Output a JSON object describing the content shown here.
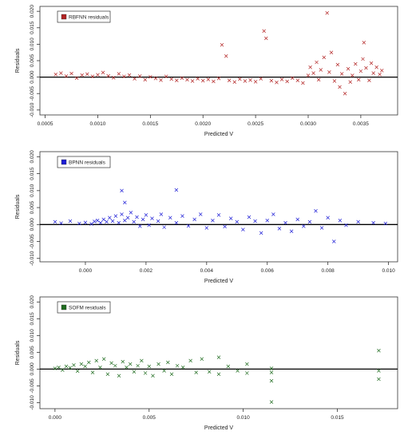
{
  "chart_data": [
    {
      "type": "scatter",
      "title": "",
      "xlabel": "Predicted V",
      "ylabel": "Residuals",
      "xlim": [
        0.00045,
        0.00385
      ],
      "ylim": [
        -0.0115,
        0.0215
      ],
      "xticks": [
        "0.0005",
        "0.0010",
        "0.0015",
        "0.0020",
        "0.0025",
        "0.0030",
        "0.0035"
      ],
      "xtick_values": [
        0.0005,
        0.001,
        0.0015,
        0.002,
        0.0025,
        0.003,
        0.0035
      ],
      "yticks": [
        "-0.010",
        "-0.005",
        "0.000",
        "0.005",
        "0.010",
        "0.015",
        "0.020"
      ],
      "ytick_values": [
        -0.01,
        -0.005,
        0.0,
        0.005,
        0.01,
        0.015,
        0.02
      ],
      "legend": {
        "label": "RBFNN residuals",
        "position": "top-left"
      },
      "color": "#b22222",
      "reference_line_y": 0,
      "series": [
        {
          "name": "RBFNN residuals",
          "points": [
            [
              0.0006,
              0.0008
            ],
            [
              0.00065,
              0.0012
            ],
            [
              0.0007,
              0.0003
            ],
            [
              0.00075,
              0.0011
            ],
            [
              0.0008,
              -0.0003
            ],
            [
              0.00085,
              0.0006
            ],
            [
              0.0009,
              0.0009
            ],
            [
              0.00095,
              0.0002
            ],
            [
              0.001,
              0.0007
            ],
            [
              0.00105,
              0.0014
            ],
            [
              0.0011,
              0.0004
            ],
            [
              0.00115,
              -0.0002
            ],
            [
              0.0012,
              0.001
            ],
            [
              0.00125,
              0.0002
            ],
            [
              0.0013,
              0.0006
            ],
            [
              0.00135,
              -0.0005
            ],
            [
              0.0014,
              0.0003
            ],
            [
              0.00145,
              -0.0008
            ],
            [
              0.0015,
              0.0001
            ],
            [
              0.00155,
              -0.0004
            ],
            [
              0.0016,
              -0.0009
            ],
            [
              0.00165,
              0.0002
            ],
            [
              0.0017,
              -0.0006
            ],
            [
              0.00175,
              -0.001
            ],
            [
              0.0018,
              -0.0003
            ],
            [
              0.00185,
              -0.0008
            ],
            [
              0.0019,
              -0.0012
            ],
            [
              0.00195,
              -0.0005
            ],
            [
              0.002,
              -0.0011
            ],
            [
              0.00205,
              -0.0007
            ],
            [
              0.0021,
              -0.0013
            ],
            [
              0.00215,
              -0.0004
            ],
            [
              0.00218,
              0.0098
            ],
            [
              0.00222,
              0.0064
            ],
            [
              0.00225,
              -0.001
            ],
            [
              0.0023,
              -0.0015
            ],
            [
              0.00235,
              -0.0006
            ],
            [
              0.0024,
              -0.0012
            ],
            [
              0.00245,
              -0.0009
            ],
            [
              0.0025,
              -0.0014
            ],
            [
              0.00255,
              -0.0005
            ],
            [
              0.00258,
              0.014
            ],
            [
              0.0026,
              0.0118
            ],
            [
              0.00265,
              -0.0011
            ],
            [
              0.0027,
              -0.0016
            ],
            [
              0.00275,
              -0.0007
            ],
            [
              0.0028,
              -0.0013
            ],
            [
              0.00285,
              -0.0003
            ],
            [
              0.0029,
              -0.001
            ],
            [
              0.00295,
              -0.0018
            ],
            [
              0.003,
              0.0005
            ],
            [
              0.00302,
              0.003
            ],
            [
              0.00305,
              0.0012
            ],
            [
              0.00308,
              0.0045
            ],
            [
              0.0031,
              -0.0008
            ],
            [
              0.00312,
              0.0022
            ],
            [
              0.00315,
              0.006
            ],
            [
              0.00318,
              0.0195
            ],
            [
              0.0032,
              0.0015
            ],
            [
              0.00322,
              0.0075
            ],
            [
              0.00325,
              -0.0012
            ],
            [
              0.00328,
              0.0038
            ],
            [
              0.0033,
              -0.003
            ],
            [
              0.00332,
              0.001
            ],
            [
              0.00335,
              -0.005
            ],
            [
              0.00338,
              0.0025
            ],
            [
              0.0034,
              -0.0015
            ],
            [
              0.00342,
              0.0005
            ],
            [
              0.00345,
              0.004
            ],
            [
              0.00348,
              -0.0008
            ],
            [
              0.0035,
              0.0018
            ],
            [
              0.00352,
              0.0055
            ],
            [
              0.00355,
              0.0028
            ],
            [
              0.00358,
              -0.001
            ],
            [
              0.0036,
              0.0042
            ],
            [
              0.00362,
              0.0012
            ],
            [
              0.00365,
              0.003
            ],
            [
              0.00368,
              0.0008
            ],
            [
              0.0037,
              0.002
            ],
            [
              0.00353,
              0.0105
            ]
          ]
        }
      ]
    },
    {
      "type": "scatter",
      "title": "",
      "xlabel": "Predicted V",
      "ylabel": "Residuals",
      "xlim": [
        -0.0015,
        0.0103
      ],
      "ylim": [
        -0.011,
        0.0215
      ],
      "xticks": [
        "0.000",
        "0.002",
        "0.004",
        "0.006",
        "0.008",
        "0.010"
      ],
      "xtick_values": [
        0.0,
        0.002,
        0.004,
        0.006,
        0.008,
        0.01
      ],
      "yticks": [
        "-0.010",
        "-0.005",
        "0.000",
        "0.005",
        "0.010",
        "0.015",
        "0.020"
      ],
      "ytick_values": [
        -0.01,
        -0.005,
        0.0,
        0.005,
        0.01,
        0.015,
        0.02
      ],
      "legend": {
        "label": "BPNN residuals",
        "position": "top-left"
      },
      "color": "#1c1cd6",
      "reference_line_y": 0,
      "series": [
        {
          "name": "BPNN residuals",
          "points": [
            [
              -0.001,
              0.0008
            ],
            [
              -0.0008,
              0.0004
            ],
            [
              -0.0005,
              0.001
            ],
            [
              -0.0002,
              0.0003
            ],
            [
              0.0,
              0.0006
            ],
            [
              0.0002,
              0.0002
            ],
            [
              0.0003,
              0.0009
            ],
            [
              0.0004,
              0.0012
            ],
            [
              0.0005,
              0.0005
            ],
            [
              0.0006,
              0.0015
            ],
            [
              0.0007,
              0.0008
            ],
            [
              0.0008,
              0.002
            ],
            [
              0.0009,
              0.001
            ],
            [
              0.001,
              0.0025
            ],
            [
              0.0011,
              0.0005
            ],
            [
              0.0012,
              0.003
            ],
            [
              0.0012,
              0.01
            ],
            [
              0.0013,
              0.0065
            ],
            [
              0.0013,
              0.0012
            ],
            [
              0.0014,
              0.002
            ],
            [
              0.0015,
              0.0035
            ],
            [
              0.0016,
              0.0008
            ],
            [
              0.0017,
              0.0022
            ],
            [
              0.0018,
              -0.0005
            ],
            [
              0.0019,
              0.0015
            ],
            [
              0.002,
              0.0028
            ],
            [
              0.0021,
              -0.0002
            ],
            [
              0.0022,
              0.0018
            ],
            [
              0.0024,
              0.001
            ],
            [
              0.0025,
              0.003
            ],
            [
              0.0026,
              -0.0008
            ],
            [
              0.0028,
              0.002
            ],
            [
              0.003,
              0.0005
            ],
            [
              0.003,
              0.0102
            ],
            [
              0.0032,
              0.0025
            ],
            [
              0.0034,
              -0.0004
            ],
            [
              0.0036,
              0.0015
            ],
            [
              0.0038,
              0.003
            ],
            [
              0.004,
              -0.001
            ],
            [
              0.0042,
              0.0012
            ],
            [
              0.0044,
              0.0028
            ],
            [
              0.0046,
              -0.0006
            ],
            [
              0.0048,
              0.0018
            ],
            [
              0.005,
              0.0008
            ],
            [
              0.0052,
              -0.0015
            ],
            [
              0.0054,
              0.0022
            ],
            [
              0.0056,
              0.001
            ],
            [
              0.0058,
              -0.0025
            ],
            [
              0.006,
              0.0012
            ],
            [
              0.0062,
              0.003
            ],
            [
              0.0064,
              -0.0012
            ],
            [
              0.0066,
              0.0005
            ],
            [
              0.0068,
              -0.002
            ],
            [
              0.007,
              0.0015
            ],
            [
              0.0072,
              -0.0005
            ],
            [
              0.0074,
              0.0008
            ],
            [
              0.0076,
              0.004
            ],
            [
              0.0078,
              -0.001
            ],
            [
              0.008,
              0.002
            ],
            [
              0.0082,
              -0.005
            ],
            [
              0.0084,
              0.0012
            ],
            [
              0.0086,
              -0.0002
            ],
            [
              0.009,
              0.0008
            ],
            [
              0.0095,
              0.0005
            ],
            [
              0.0099,
              0.0003
            ]
          ]
        }
      ]
    },
    {
      "type": "scatter",
      "title": "",
      "xlabel": "Predicted V",
      "ylabel": "Residuals",
      "xlim": [
        -0.0008,
        0.0182
      ],
      "ylim": [
        -0.0118,
        0.0215
      ],
      "xticks": [
        "0.000",
        "0.005",
        "0.010",
        "0.015"
      ],
      "xtick_values": [
        0.0,
        0.005,
        0.01,
        0.015
      ],
      "yticks": [
        "-0.010",
        "-0.005",
        "0.000",
        "0.005",
        "0.010",
        "0.015",
        "0.020"
      ],
      "ytick_values": [
        -0.01,
        -0.005,
        0.0,
        0.005,
        0.01,
        0.015,
        0.02
      ],
      "legend": {
        "label": "SOFM residuals",
        "position": "top-left"
      },
      "color": "#1e6b1e",
      "reference_line_y": 0,
      "series": [
        {
          "name": "SOFM residuals",
          "points": [
            [
              0.0,
              0.0002
            ],
            [
              0.0002,
              0.0005
            ],
            [
              0.0004,
              -0.0003
            ],
            [
              0.0006,
              0.0008
            ],
            [
              0.0008,
              0.0004
            ],
            [
              0.001,
              0.0012
            ],
            [
              0.0012,
              -0.0006
            ],
            [
              0.0014,
              0.0015
            ],
            [
              0.0016,
              0.0008
            ],
            [
              0.0018,
              0.002
            ],
            [
              0.002,
              -0.001
            ],
            [
              0.0022,
              0.0025
            ],
            [
              0.0024,
              0.0005
            ],
            [
              0.0026,
              0.003
            ],
            [
              0.0028,
              -0.0015
            ],
            [
              0.003,
              0.0018
            ],
            [
              0.0032,
              0.001
            ],
            [
              0.0034,
              -0.002
            ],
            [
              0.0036,
              0.0022
            ],
            [
              0.0038,
              0.0005
            ],
            [
              0.004,
              0.0015
            ],
            [
              0.0042,
              -0.0008
            ],
            [
              0.0044,
              0.001
            ],
            [
              0.0046,
              0.0025
            ],
            [
              0.0048,
              -0.0012
            ],
            [
              0.005,
              0.0008
            ],
            [
              0.0052,
              -0.002
            ],
            [
              0.0055,
              0.0015
            ],
            [
              0.0058,
              -0.0005
            ],
            [
              0.006,
              0.002
            ],
            [
              0.0062,
              -0.0015
            ],
            [
              0.0065,
              0.001
            ],
            [
              0.0068,
              0.0005
            ],
            [
              0.0072,
              0.0025
            ],
            [
              0.0075,
              -0.001
            ],
            [
              0.0078,
              0.003
            ],
            [
              0.0082,
              -0.0008
            ],
            [
              0.0087,
              0.0035
            ],
            [
              0.0087,
              -0.0015
            ],
            [
              0.0092,
              0.0008
            ],
            [
              0.0097,
              -0.0005
            ],
            [
              0.0102,
              0.0015
            ],
            [
              0.0102,
              -0.0012
            ],
            [
              0.0115,
              -0.001
            ],
            [
              0.0115,
              -0.0035
            ],
            [
              0.0115,
              -0.0098
            ],
            [
              0.0115,
              0.0002
            ],
            [
              0.0172,
              0.0055
            ],
            [
              0.0172,
              -0.0005
            ],
            [
              0.0172,
              -0.003
            ]
          ]
        }
      ]
    }
  ]
}
